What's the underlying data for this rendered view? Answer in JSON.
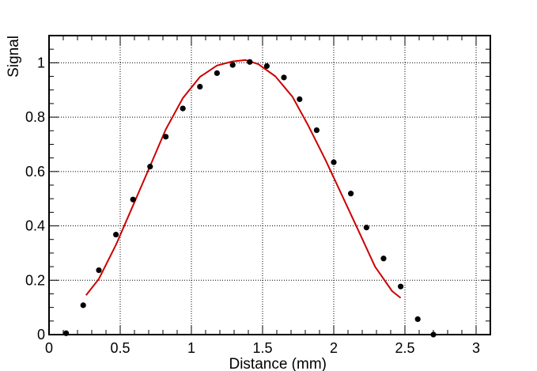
{
  "chart_data": {
    "type": "scatter",
    "title": "",
    "xlabel": "Distance (mm)",
    "ylabel": "Signal",
    "xlim": [
      0,
      3.1
    ],
    "ylim": [
      0,
      1.1
    ],
    "grid": true,
    "x_ticks": [
      0,
      0.5,
      1,
      1.5,
      2,
      2.5,
      3
    ],
    "x_tick_labels": [
      "0",
      "0.5",
      "1",
      "1.5",
      "2",
      "2.5",
      "3"
    ],
    "y_ticks": [
      0,
      0.2,
      0.4,
      0.6,
      0.8,
      1
    ],
    "y_tick_labels": [
      "0",
      "0.2",
      "0.4",
      "0.6",
      "0.8",
      "1"
    ],
    "series": [
      {
        "type": "scatter",
        "color": "#000000",
        "x": [
          0.12,
          0.24,
          0.35,
          0.47,
          0.59,
          0.71,
          0.82,
          0.94,
          1.06,
          1.18,
          1.29,
          1.41,
          1.53,
          1.65,
          1.76,
          1.88,
          2.0,
          2.12,
          2.23,
          2.35,
          2.47,
          2.59,
          2.7
        ],
        "y": [
          0.005,
          0.108,
          0.237,
          0.368,
          0.497,
          0.618,
          0.728,
          0.832,
          0.912,
          0.962,
          0.992,
          1.003,
          0.988,
          0.946,
          0.866,
          0.752,
          0.634,
          0.519,
          0.394,
          0.28,
          0.177,
          0.057,
          0.0
        ]
      },
      {
        "type": "line",
        "color": "#cc0000",
        "x": [
          0.26,
          0.35,
          0.47,
          0.59,
          0.71,
          0.82,
          0.94,
          1.06,
          1.18,
          1.29,
          1.38,
          1.47,
          1.59,
          1.71,
          1.82,
          1.94,
          2.06,
          2.18,
          2.29,
          2.41,
          2.47
        ],
        "y": [
          0.145,
          0.205,
          0.33,
          0.475,
          0.62,
          0.755,
          0.87,
          0.948,
          0.99,
          1.005,
          1.01,
          0.995,
          0.95,
          0.875,
          0.77,
          0.645,
          0.51,
          0.375,
          0.25,
          0.16,
          0.135
        ]
      }
    ]
  }
}
